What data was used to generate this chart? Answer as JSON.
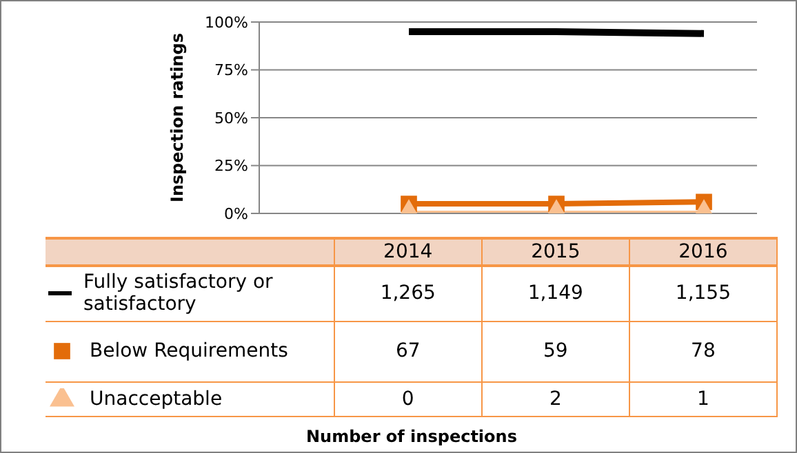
{
  "chart_data": {
    "type": "line",
    "ylabel": "Inspection ratings",
    "categories": [
      "2014",
      "2015",
      "2016"
    ],
    "series": [
      {
        "name": "Fully satisfactory or satisfactory",
        "color": "#000000",
        "marker": "none",
        "values": [
          95,
          95,
          94
        ]
      },
      {
        "name": "Below Requirements",
        "color": "#e36c0a",
        "marker": "square",
        "values": [
          5,
          5,
          6
        ]
      },
      {
        "name": "Unacceptable",
        "color": "#fac090",
        "marker": "triangle",
        "values": [
          0,
          0,
          0
        ]
      }
    ],
    "annotations": [
      "1,265",
      "1,149",
      "1,155",
      "67",
      "59",
      "78",
      "0",
      "2",
      "1",
      "Number of inspections"
    ],
    "ylim": [
      0,
      100
    ],
    "yticks": [
      {
        "value": 0,
        "label": "0%"
      },
      {
        "value": 25,
        "label": "25%"
      },
      {
        "value": 50,
        "label": "50%"
      },
      {
        "value": 75,
        "label": "75%"
      },
      {
        "value": 100,
        "label": "100%"
      }
    ],
    "grid": "y",
    "legend": "bottom"
  }
}
